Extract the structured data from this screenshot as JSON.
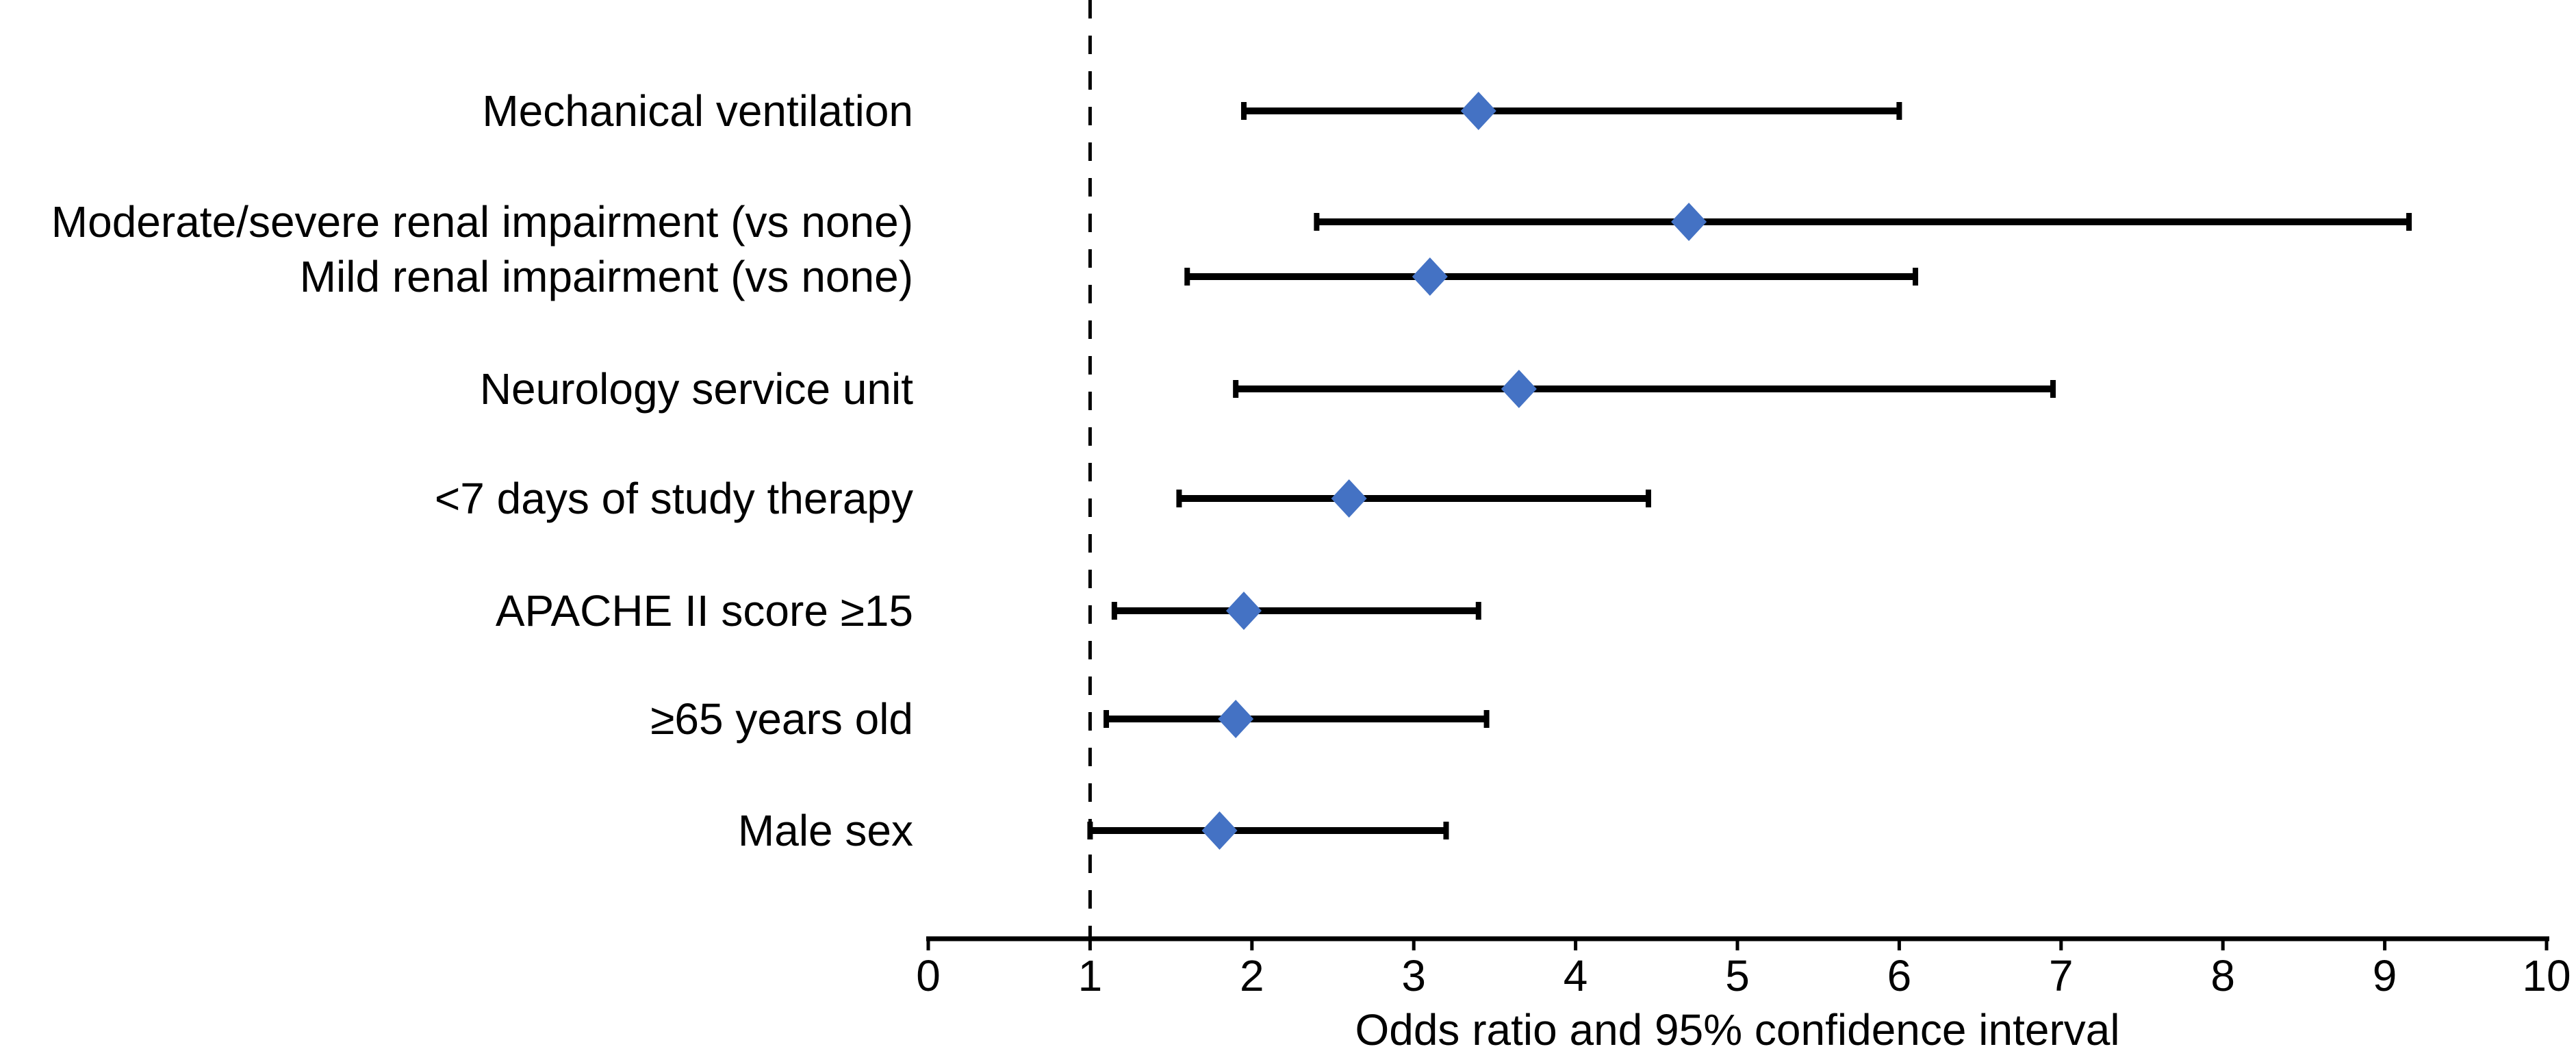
{
  "figure": {
    "background": "#ffffff",
    "foreground": "#000000"
  },
  "chart_data": {
    "type": "scatter",
    "variant": "forest-plot",
    "title": "",
    "xlabel": "Odds ratio and 95% confidence interval",
    "ylabel": "",
    "xlim": [
      0,
      10
    ],
    "x_ticks": [
      "0",
      "1",
      "2",
      "3",
      "4",
      "5",
      "6",
      "7",
      "8",
      "9",
      "10"
    ],
    "grid": false,
    "legend": "none",
    "reference_line": {
      "x": 1,
      "style": "dashed",
      "color": "#000000"
    },
    "marker": {
      "shape": "diamond",
      "color": "#4472C4"
    },
    "ci_color": "#000000",
    "rows": [
      {
        "label": "Mechanical ventilation",
        "or": 3.4,
        "ci_low": 1.95,
        "ci_high": 6.0
      },
      {
        "label": "Moderate/severe renal impairment (vs none)",
        "or": 4.7,
        "ci_low": 2.4,
        "ci_high": 9.15
      },
      {
        "label": "Mild renal impairment (vs none)",
        "or": 3.1,
        "ci_low": 1.6,
        "ci_high": 6.1
      },
      {
        "label": "Neurology service unit",
        "or": 3.65,
        "ci_low": 1.9,
        "ci_high": 6.95
      },
      {
        "label": "<7 days of study therapy",
        "or": 2.6,
        "ci_low": 1.55,
        "ci_high": 4.45
      },
      {
        "label": "APACHE II score ≥15",
        "or": 1.95,
        "ci_low": 1.15,
        "ci_high": 3.4
      },
      {
        "label": "≥65 years old",
        "or": 1.9,
        "ci_low": 1.1,
        "ci_high": 3.45
      },
      {
        "label": "Male sex",
        "or": 1.8,
        "ci_low": 1.0,
        "ci_high": 3.2
      }
    ]
  }
}
